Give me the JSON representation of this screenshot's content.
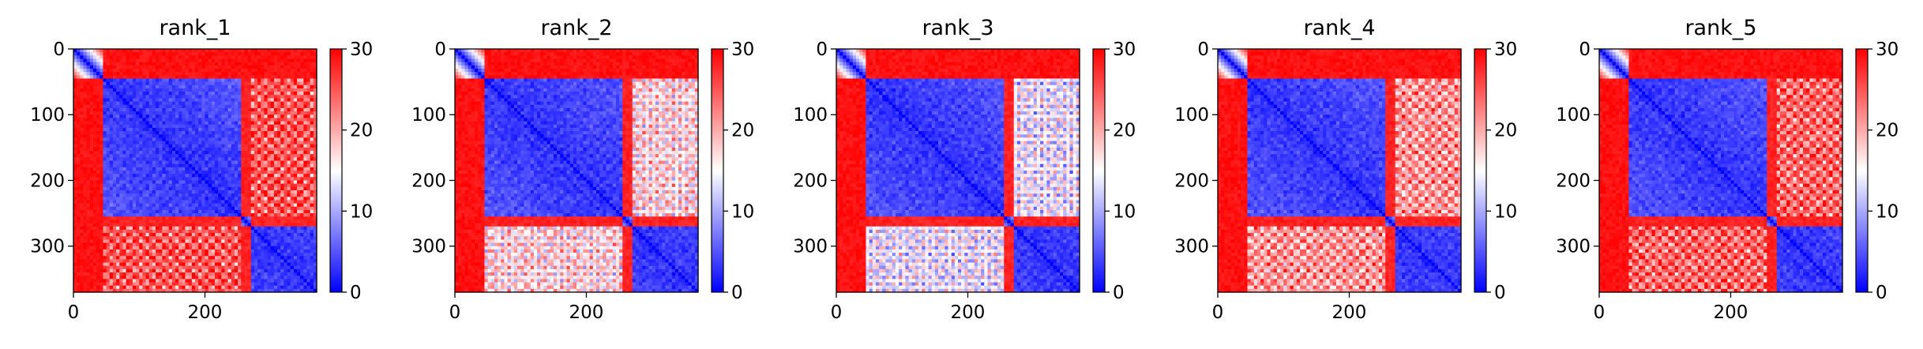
{
  "chart_data": [
    {
      "type": "heatmap",
      "title": "rank_1",
      "size": 370,
      "xticks": [
        0,
        200
      ],
      "yticks": [
        0,
        100,
        200,
        300
      ],
      "colorbar": {
        "ticks": [
          0,
          10,
          20,
          30
        ],
        "vmin": 0,
        "vmax": 30,
        "colormap": "bwr"
      },
      "domains": [
        [
          0,
          45
        ],
        [
          45,
          255
        ],
        [
          255,
          270
        ],
        [
          270,
          370
        ]
      ],
      "inter_intensity": 25
    },
    {
      "type": "heatmap",
      "title": "rank_2",
      "size": 370,
      "xticks": [
        0,
        200
      ],
      "yticks": [
        0,
        100,
        200,
        300
      ],
      "colorbar": {
        "ticks": [
          0,
          10,
          20,
          30
        ],
        "vmin": 0,
        "vmax": 30,
        "colormap": "bwr"
      },
      "domains": [
        [
          0,
          45
        ],
        [
          45,
          255
        ],
        [
          255,
          270
        ],
        [
          270,
          370
        ]
      ],
      "inter_intensity": 17
    },
    {
      "type": "heatmap",
      "title": "rank_3",
      "size": 370,
      "xticks": [
        0,
        200
      ],
      "yticks": [
        0,
        100,
        200,
        300
      ],
      "colorbar": {
        "ticks": [
          0,
          10,
          20,
          30
        ],
        "vmin": 0,
        "vmax": 30,
        "colormap": "bwr"
      },
      "domains": [
        [
          0,
          45
        ],
        [
          45,
          255
        ],
        [
          255,
          270
        ],
        [
          270,
          370
        ]
      ],
      "inter_intensity": 14
    },
    {
      "type": "heatmap",
      "title": "rank_4",
      "size": 370,
      "xticks": [
        0,
        200
      ],
      "yticks": [
        0,
        100,
        200,
        300
      ],
      "colorbar": {
        "ticks": [
          0,
          10,
          20,
          30
        ],
        "vmin": 0,
        "vmax": 30,
        "colormap": "bwr"
      },
      "domains": [
        [
          0,
          45
        ],
        [
          45,
          255
        ],
        [
          255,
          270
        ],
        [
          270,
          370
        ]
      ],
      "inter_intensity": 21
    },
    {
      "type": "heatmap",
      "title": "rank_5",
      "size": 370,
      "xticks": [
        0,
        200
      ],
      "yticks": [
        0,
        100,
        200,
        300
      ],
      "colorbar": {
        "ticks": [
          0,
          10,
          20,
          30
        ],
        "vmin": 0,
        "vmax": 30,
        "colormap": "bwr"
      },
      "domains": [
        [
          0,
          45
        ],
        [
          45,
          255
        ],
        [
          255,
          270
        ],
        [
          270,
          370
        ]
      ],
      "inter_intensity": 24
    }
  ]
}
